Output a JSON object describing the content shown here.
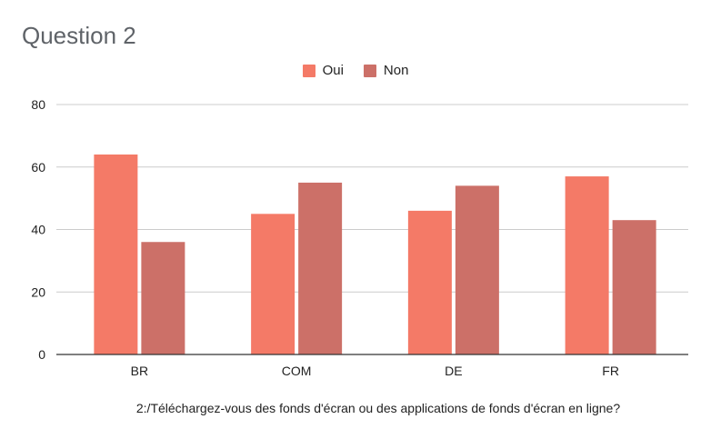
{
  "chart_data": {
    "type": "bar",
    "title": "Question 2",
    "xlabel": "2:/Téléchargez-vous des fonds d'écran ou des applications de fonds d'écran en ligne?",
    "ylabel": "",
    "categories": [
      "BR",
      "COM",
      "DE",
      "FR"
    ],
    "series": [
      {
        "name": "Oui",
        "values": [
          64,
          45,
          46,
          57
        ],
        "color": "#f47a67"
      },
      {
        "name": "Non",
        "values": [
          36,
          55,
          54,
          43
        ],
        "color": "#cc7068"
      }
    ],
    "ylim": [
      0,
      80
    ],
    "yticks": [
      0,
      20,
      40,
      60,
      80
    ],
    "grid": true,
    "legend": "top-center"
  }
}
